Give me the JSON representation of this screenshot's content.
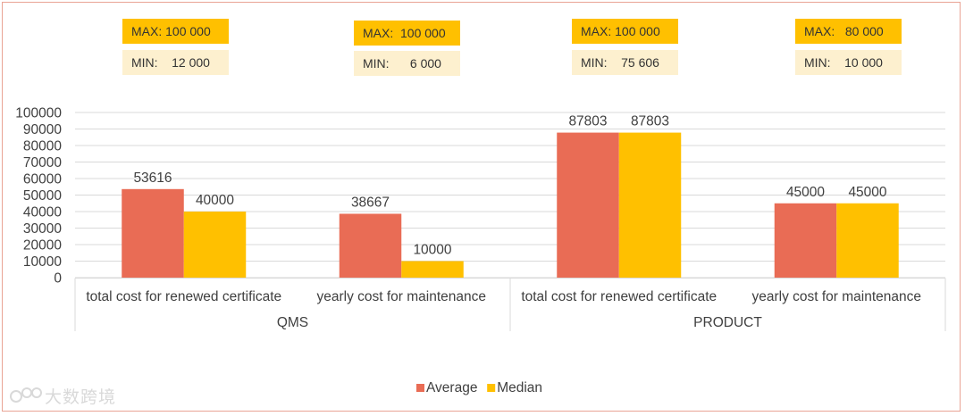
{
  "stat_boxes": [
    {
      "max": "MAX: 100 000",
      "min": "MIN:    12 000"
    },
    {
      "max": "MAX:  100 000",
      "min": "MIN:      6 000"
    },
    {
      "max": "MAX: 100 000",
      "min": "MIN:    75 606"
    },
    {
      "max": "MAX:   80 000",
      "min": "MIN:    10 000"
    }
  ],
  "watermark": {
    "text": "大数跨境"
  },
  "colors": {
    "average": "#e96c55",
    "median": "#ffc000",
    "grid": "#d9d9d9",
    "axis_text": "#404040",
    "frame": "#e9a394"
  },
  "chart_data": {
    "type": "bar",
    "title": "",
    "xlabel": "",
    "ylabel": "",
    "ylim": [
      0,
      100000
    ],
    "yticks": [
      "0",
      "10000",
      "20000",
      "30000",
      "40000",
      "50000",
      "60000",
      "70000",
      "80000",
      "90000",
      "100000"
    ],
    "groups": [
      "QMS",
      "PRODUCT"
    ],
    "categories": [
      "total cost for renewed certificate",
      "yearly cost for maintenance",
      "total cost for renewed certificate",
      "yearly cost for maintenance"
    ],
    "series": [
      {
        "name": "Average",
        "values": [
          53616,
          38667,
          87803,
          45000
        ]
      },
      {
        "name": "Median",
        "values": [
          40000,
          10000,
          87803,
          45000
        ]
      }
    ],
    "legend_position": "bottom",
    "grid": true
  }
}
